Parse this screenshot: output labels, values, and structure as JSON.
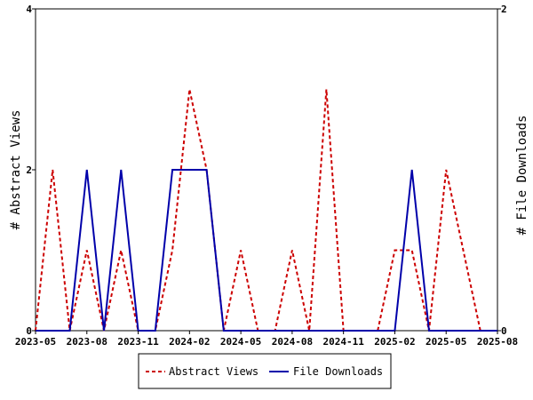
{
  "chart_data": {
    "type": "line",
    "x_labels": [
      "2023-05",
      "2023-08",
      "2023-11",
      "2024-02",
      "2024-05",
      "2024-08",
      "2024-11",
      "2025-02",
      "2025-05",
      "2025-08"
    ],
    "y_left": {
      "label": "# Abstract Views",
      "min": 0,
      "max": 4,
      "ticks": [
        "0",
        "2",
        "4"
      ]
    },
    "y_right": {
      "label": "# File Downloads",
      "min": 0,
      "max": 2,
      "ticks": [
        "0",
        "2"
      ]
    },
    "series": [
      {
        "name": "Abstract Views",
        "axis": "left",
        "color": "#cc0000",
        "style": "dashed",
        "values": [
          0,
          2,
          0,
          1,
          0,
          1,
          0,
          0,
          1,
          3,
          2,
          0,
          1,
          0,
          0,
          1,
          0,
          3,
          0,
          0,
          0,
          1,
          1,
          0,
          2,
          1,
          0,
          0
        ]
      },
      {
        "name": "File Downloads",
        "axis": "right",
        "color": "#0000aa",
        "style": "solid",
        "values": [
          0,
          0,
          0,
          1,
          0,
          1,
          0,
          0,
          1,
          1,
          1,
          0,
          0,
          0,
          0,
          0,
          0,
          0,
          0,
          0,
          0,
          0,
          1,
          0,
          0,
          0,
          0,
          0
        ]
      }
    ],
    "legend": {
      "position": "bottom-center"
    },
    "grid": false
  }
}
